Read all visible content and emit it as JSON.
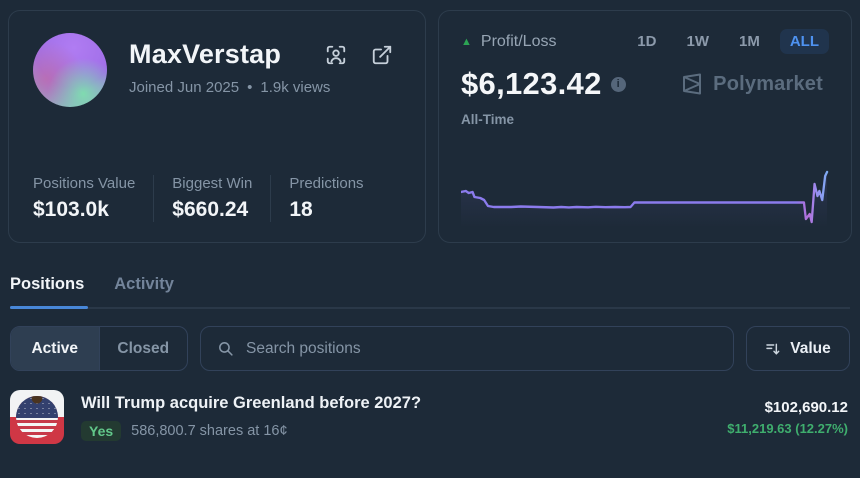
{
  "profile": {
    "name": "MaxVerstap",
    "joined": "Joined Jun 2025",
    "meta_separator": "•",
    "views": "1.9k views",
    "stats": [
      {
        "label": "Positions Value",
        "value": "$103.0k"
      },
      {
        "label": "Biggest Win",
        "value": "$660.24"
      },
      {
        "label": "Predictions",
        "value": "18"
      }
    ]
  },
  "pnl": {
    "label": "Profit/Loss",
    "up_indicator": "▲",
    "value": "$6,123.42",
    "info_glyph": "i",
    "period_label": "All-Time",
    "brand": "Polymarket",
    "ranges": [
      {
        "label": "1D",
        "active": false
      },
      {
        "label": "1W",
        "active": false
      },
      {
        "label": "1M",
        "active": false
      },
      {
        "label": "ALL",
        "active": true
      }
    ]
  },
  "chart_data": {
    "type": "line",
    "title": "Profit/Loss All-Time sparkline",
    "description": "P/L starts slightly positive, steps down early, stays flat for most of history, small step up mid-way, dips sharply then spikes up to the all-time high at the far right",
    "x_range": [
      0,
      382
    ],
    "y_range_svg": [
      0,
      58
    ],
    "points": [
      [
        0,
        26
      ],
      [
        5,
        25
      ],
      [
        8,
        27
      ],
      [
        12,
        26
      ],
      [
        14,
        31
      ],
      [
        20,
        32
      ],
      [
        24,
        34
      ],
      [
        28,
        40
      ],
      [
        34,
        41
      ],
      [
        52,
        41
      ],
      [
        62,
        40.5
      ],
      [
        80,
        41
      ],
      [
        96,
        41.5
      ],
      [
        104,
        41
      ],
      [
        112,
        41.4
      ],
      [
        120,
        41
      ],
      [
        132,
        41.3
      ],
      [
        140,
        40.8
      ],
      [
        150,
        41.2
      ],
      [
        160,
        41
      ],
      [
        170,
        41.2
      ],
      [
        176,
        41
      ],
      [
        180,
        36.5
      ],
      [
        210,
        36.5
      ],
      [
        250,
        36.5
      ],
      [
        290,
        36.5
      ],
      [
        320,
        36.5
      ],
      [
        344,
        36.5
      ],
      [
        356,
        36.5
      ],
      [
        358,
        53
      ],
      [
        362,
        48
      ],
      [
        364,
        56
      ],
      [
        367,
        18
      ],
      [
        370,
        30
      ],
      [
        372,
        25
      ],
      [
        375,
        34
      ],
      [
        378,
        10
      ],
      [
        380,
        6
      ]
    ],
    "line_colors": {
      "main": "#8b7bed",
      "dip": "#b66fd8",
      "spike_top": "#79b0f2"
    }
  },
  "tabs": [
    {
      "label": "Positions",
      "active": true
    },
    {
      "label": "Activity",
      "active": false
    }
  ],
  "filters": {
    "segments": [
      {
        "label": "Active",
        "active": true
      },
      {
        "label": "Closed",
        "active": false
      }
    ],
    "search_placeholder": "Search positions",
    "sort_label": "Value"
  },
  "positions": [
    {
      "title": "Will Trump acquire Greenland before 2027?",
      "outcome": "Yes",
      "shares_text": "586,800.7 shares at 16¢",
      "value": "$102,690.12",
      "gain": "$11,219.63 (12.27%)"
    }
  ],
  "colors": {
    "background": "#1d2a38",
    "card_border": "#2d3c4c",
    "accent_blue": "#4e92f0",
    "tab_indicator": "#4887d8",
    "positive_green": "#3fae6e",
    "chart_purple": "#8b7bed",
    "muted_text": "#8595a6"
  }
}
